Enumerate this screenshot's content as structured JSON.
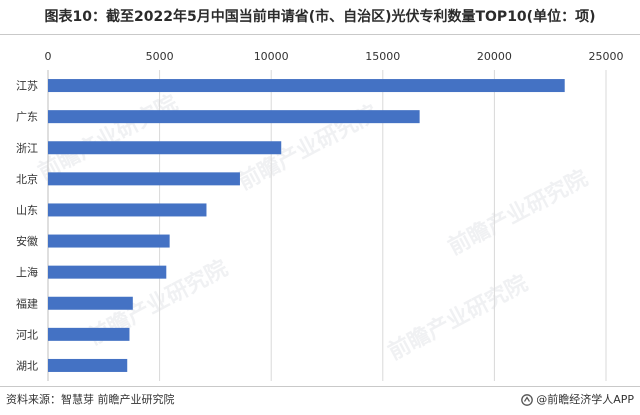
{
  "title": "图表10：截至2022年5月中国当前申请省(市、自治区)光伏专利数量TOP10(单位：项)",
  "footer": {
    "source": "资料来源：智慧芽 前瞻产业研究院",
    "brand": "@前瞻经济学人APP"
  },
  "watermark_text": "前瞻产业研究院",
  "colors": {
    "bar": "#4472c4",
    "grid": "#d9d9d9",
    "text": "#333333"
  },
  "chart_data": {
    "type": "bar",
    "orientation": "horizontal",
    "title": "图表10：截至2022年5月中国当前申请省(市、自治区)光伏专利数量TOP10(单位：项)",
    "xlabel": "",
    "ylabel": "",
    "xlim": [
      0,
      25000
    ],
    "x_ticks": [
      0,
      5000,
      10000,
      15000,
      20000,
      25000
    ],
    "x_axis_position": "top",
    "grid": true,
    "categories": [
      "江苏",
      "广东",
      "浙江",
      "北京",
      "山东",
      "安徽",
      "上海",
      "福建",
      "河北",
      "湖北"
    ],
    "values": [
      23150,
      16650,
      10450,
      8600,
      7100,
      5450,
      5300,
      3800,
      3650,
      3550
    ]
  }
}
